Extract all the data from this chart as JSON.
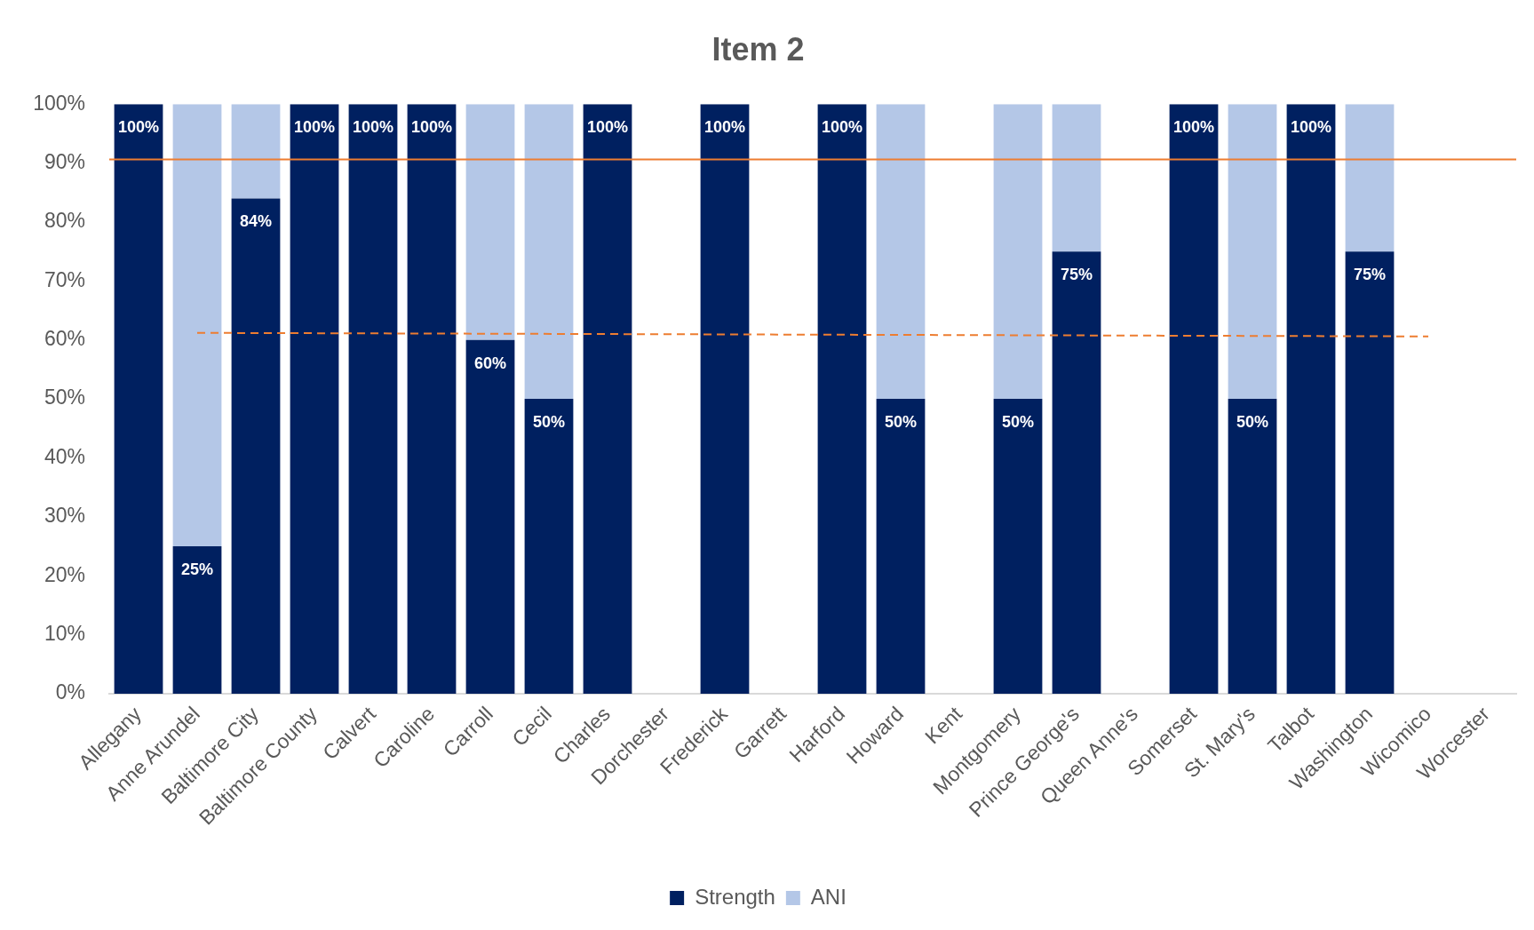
{
  "chart_data": {
    "type": "bar",
    "title": "Item 2",
    "categories": [
      "Allegany",
      "Anne Arundel",
      "Baltimore City",
      "Baltimore County",
      "Calvert",
      "Caroline",
      "Carroll",
      "Cecil",
      "Charles",
      "Dorchester",
      "Frederick",
      "Garrett",
      "Harford",
      "Howard",
      "Kent",
      "Montgomery",
      "Prince George's",
      "Queen Anne's",
      "Somerset",
      "St. Mary's",
      "Talbot",
      "Washington",
      "Wicomico",
      "Worcester"
    ],
    "stacked": true,
    "series": [
      {
        "name": "Strength",
        "color": "#002060",
        "values": [
          100,
          25,
          84,
          100,
          100,
          100,
          60,
          50,
          100,
          null,
          100,
          null,
          100,
          50,
          null,
          50,
          75,
          null,
          100,
          50,
          100,
          75,
          null,
          null
        ],
        "value_labels": [
          "100%",
          "25%",
          "84%",
          "100%",
          "100%",
          "100%",
          "60%",
          "50%",
          "100%",
          null,
          "100%",
          null,
          "100%",
          "50%",
          null,
          "50%",
          "75%",
          null,
          "100%",
          "50%",
          "100%",
          "75%",
          null,
          null
        ]
      },
      {
        "name": "ANI",
        "color": "#b4c7e7",
        "values": [
          null,
          75,
          16,
          null,
          null,
          null,
          40,
          50,
          null,
          null,
          null,
          null,
          null,
          50,
          null,
          50,
          25,
          null,
          null,
          50,
          null,
          25,
          null,
          null
        ]
      },
      {
        "type": "line",
        "x": [
          "Anne Arundel",
          "Wicomico"
        ],
        "values": [
          61.2,
          60.6
        ],
        "color": "#ed7d31",
        "line_style": "dashed"
      }
    ],
    "ylim": [
      0,
      100
    ],
    "yticks": [
      {
        "value": 0,
        "label": "0%"
      },
      {
        "value": 10,
        "label": "10%"
      },
      {
        "value": 20,
        "label": "20%"
      },
      {
        "value": 30,
        "label": "30%"
      },
      {
        "value": 40,
        "label": "40%"
      },
      {
        "value": 50,
        "label": "50%"
      },
      {
        "value": 60,
        "label": "60%"
      },
      {
        "value": 70,
        "label": "70%"
      },
      {
        "value": 80,
        "label": "80%"
      },
      {
        "value": 90,
        "label": "90%"
      },
      {
        "value": 100,
        "label": "100%"
      }
    ],
    "ref_lines": [
      {
        "axis": "y",
        "value": 90.6,
        "color": "#ed7d31"
      }
    ],
    "legend": "bottom"
  }
}
